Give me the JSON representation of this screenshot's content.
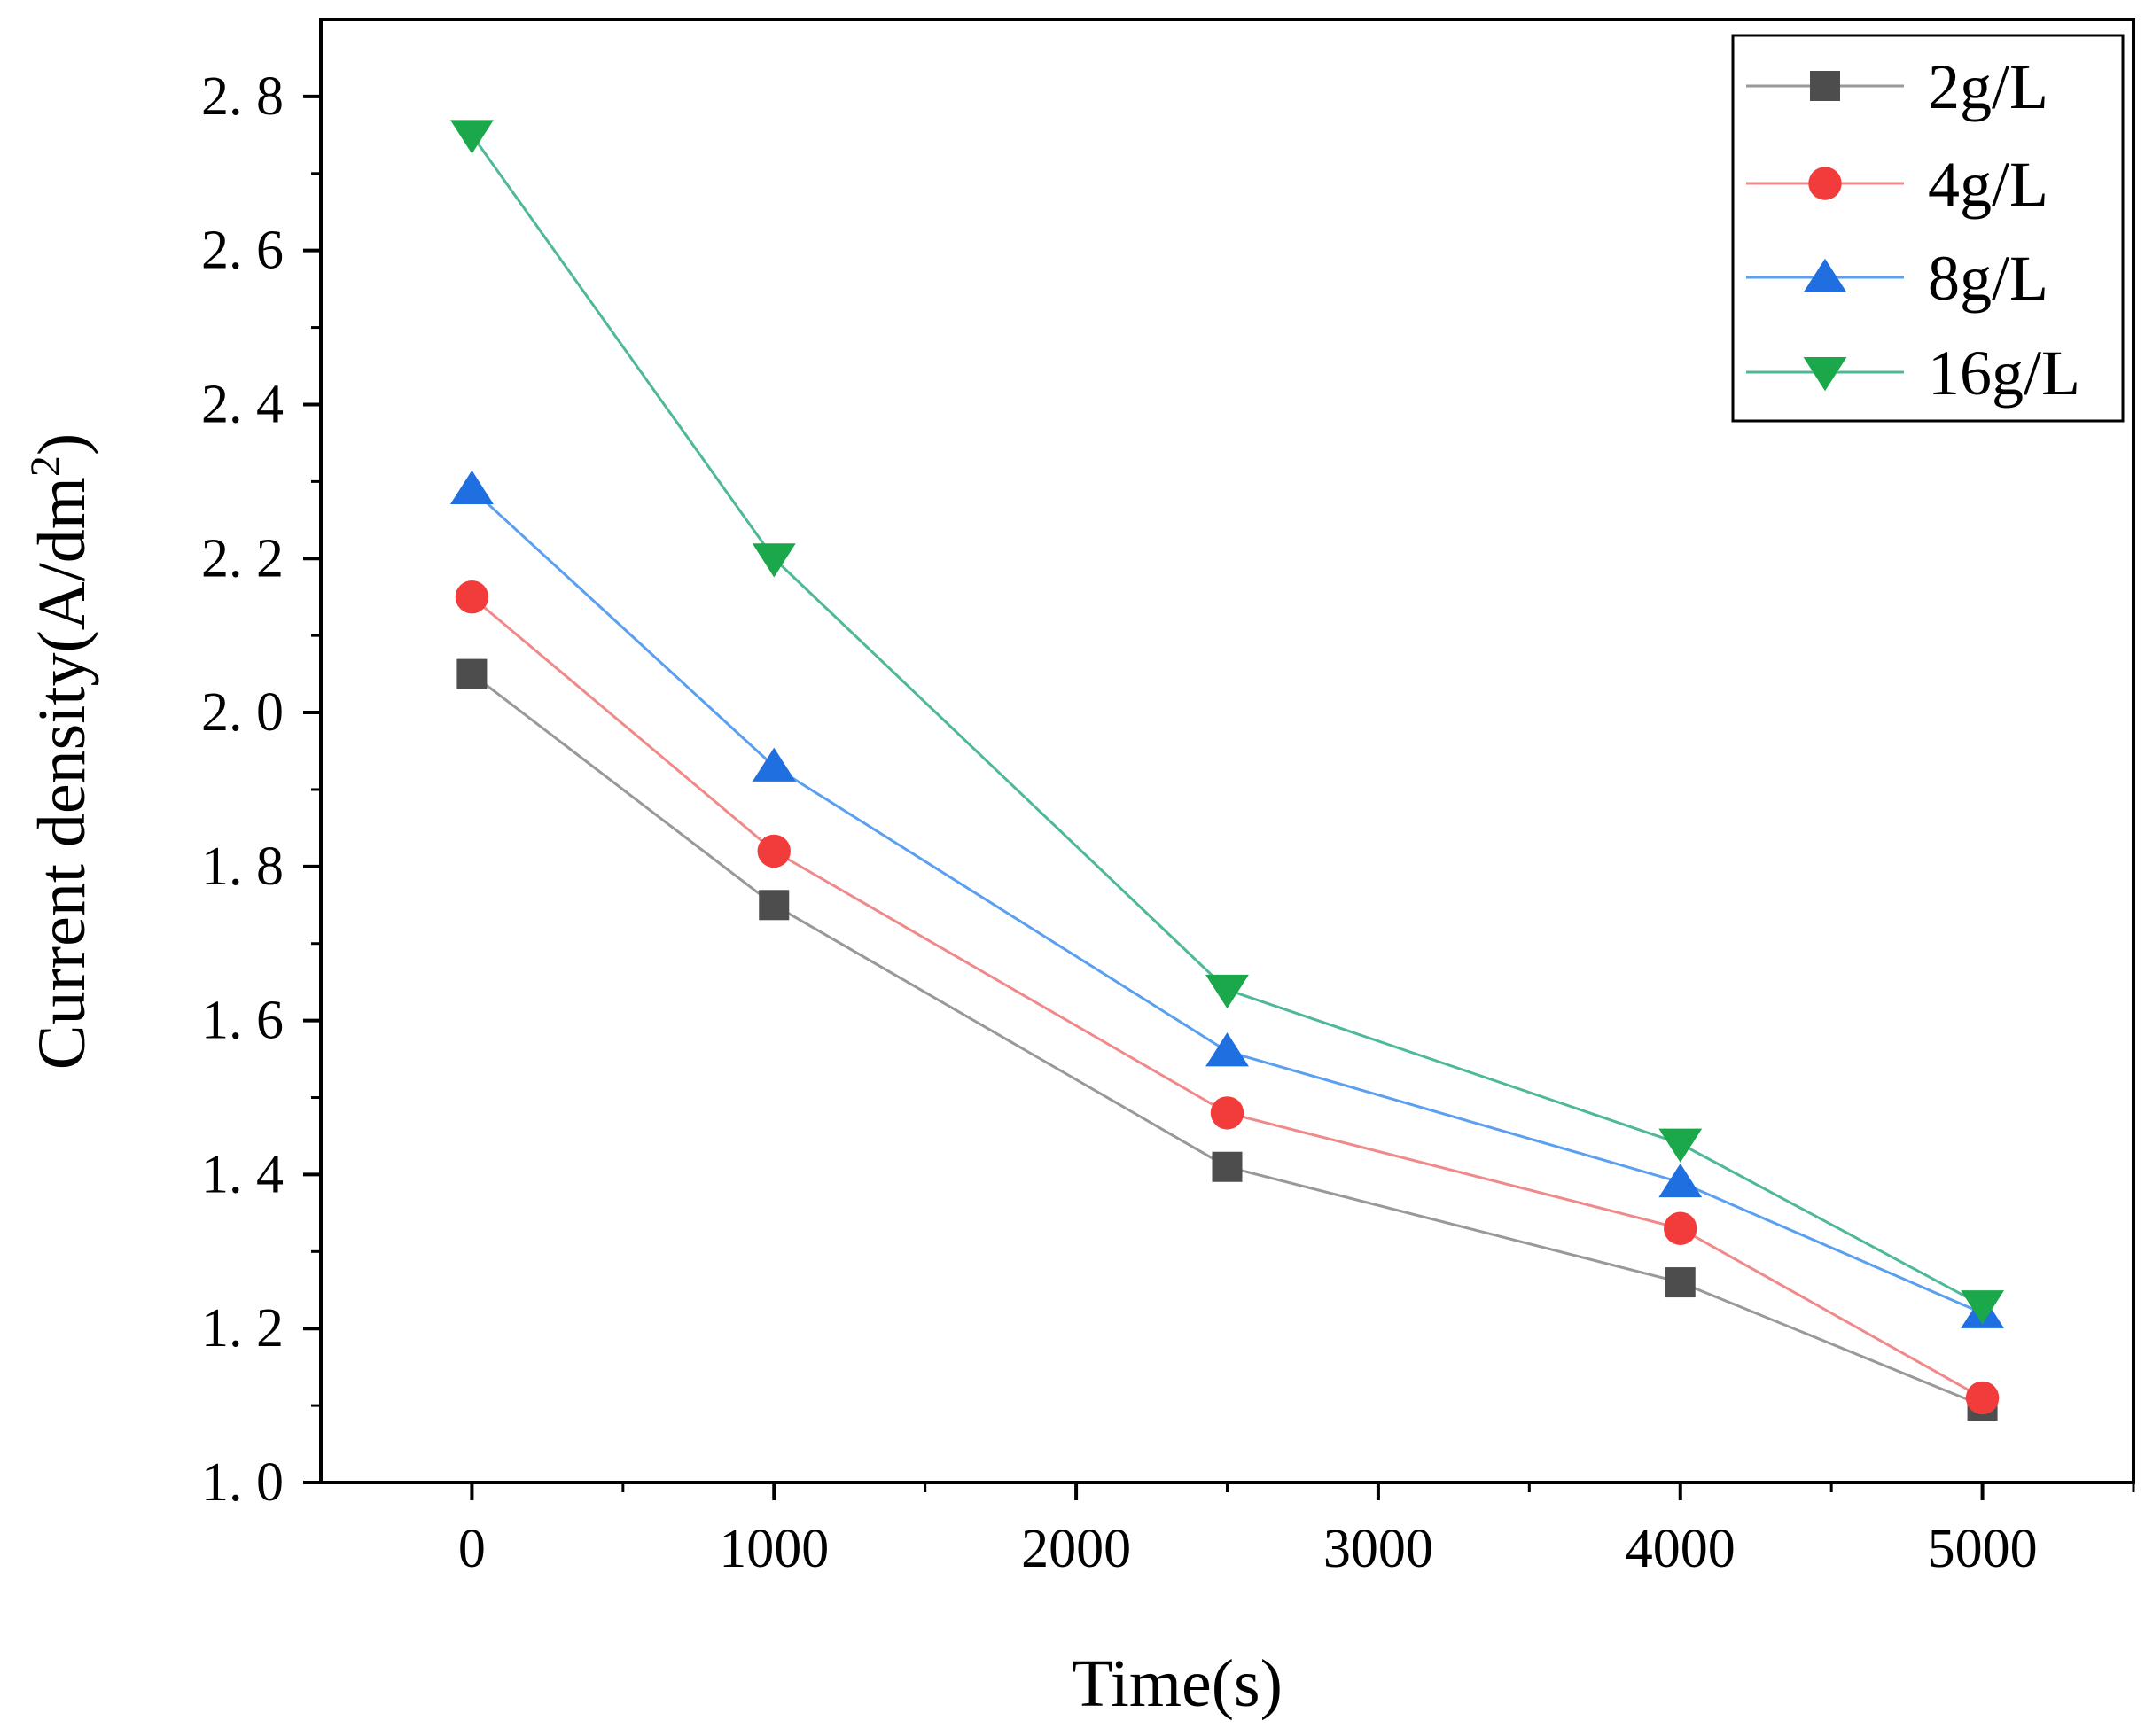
{
  "chart_data": {
    "type": "line",
    "xlabel": "Time(s)",
    "ylabel": "Current density(A/dm",
    "ylabel_superscript": "2",
    "ylabel_close": ")",
    "xlim": [
      -500,
      5500
    ],
    "ylim": [
      1.0,
      2.9
    ],
    "xticks": [
      0,
      1000,
      2000,
      3000,
      4000,
      5000
    ],
    "xtick_labels": [
      "0",
      "1000",
      "2000",
      "3000",
      "4000",
      "5000"
    ],
    "yticks": [
      1.0,
      1.2,
      1.4,
      1.6,
      1.8,
      2.0,
      2.2,
      2.4,
      2.6,
      2.8
    ],
    "ytick_labels": [
      "1. 0",
      "1. 2",
      "1. 4",
      "1. 6",
      "1. 8",
      "2. 0",
      "2. 2",
      "2. 4",
      "2. 6",
      "2. 8"
    ],
    "x": [
      0,
      1000,
      2500,
      4000,
      5000
    ],
    "legend_position": "top-right",
    "grid": false,
    "series": [
      {
        "name": "2g/L",
        "marker": "square",
        "color": "#4d4d4d",
        "line_color": "#999999",
        "values": [
          2.05,
          1.75,
          1.41,
          1.26,
          1.1
        ]
      },
      {
        "name": "4g/L",
        "marker": "circle",
        "color": "#f23c3c",
        "line_color": "#f08a8a",
        "values": [
          2.15,
          1.82,
          1.48,
          1.33,
          1.11
        ]
      },
      {
        "name": "8g/L",
        "marker": "triangle-up",
        "color": "#1f6fe0",
        "line_color": "#5a9ff0",
        "values": [
          2.29,
          1.93,
          1.56,
          1.39,
          1.22
        ]
      },
      {
        "name": "16g/L",
        "marker": "triangle-down",
        "color": "#1aa84a",
        "line_color": "#4fb89a",
        "values": [
          2.75,
          2.2,
          1.64,
          1.44,
          1.23
        ]
      }
    ]
  }
}
